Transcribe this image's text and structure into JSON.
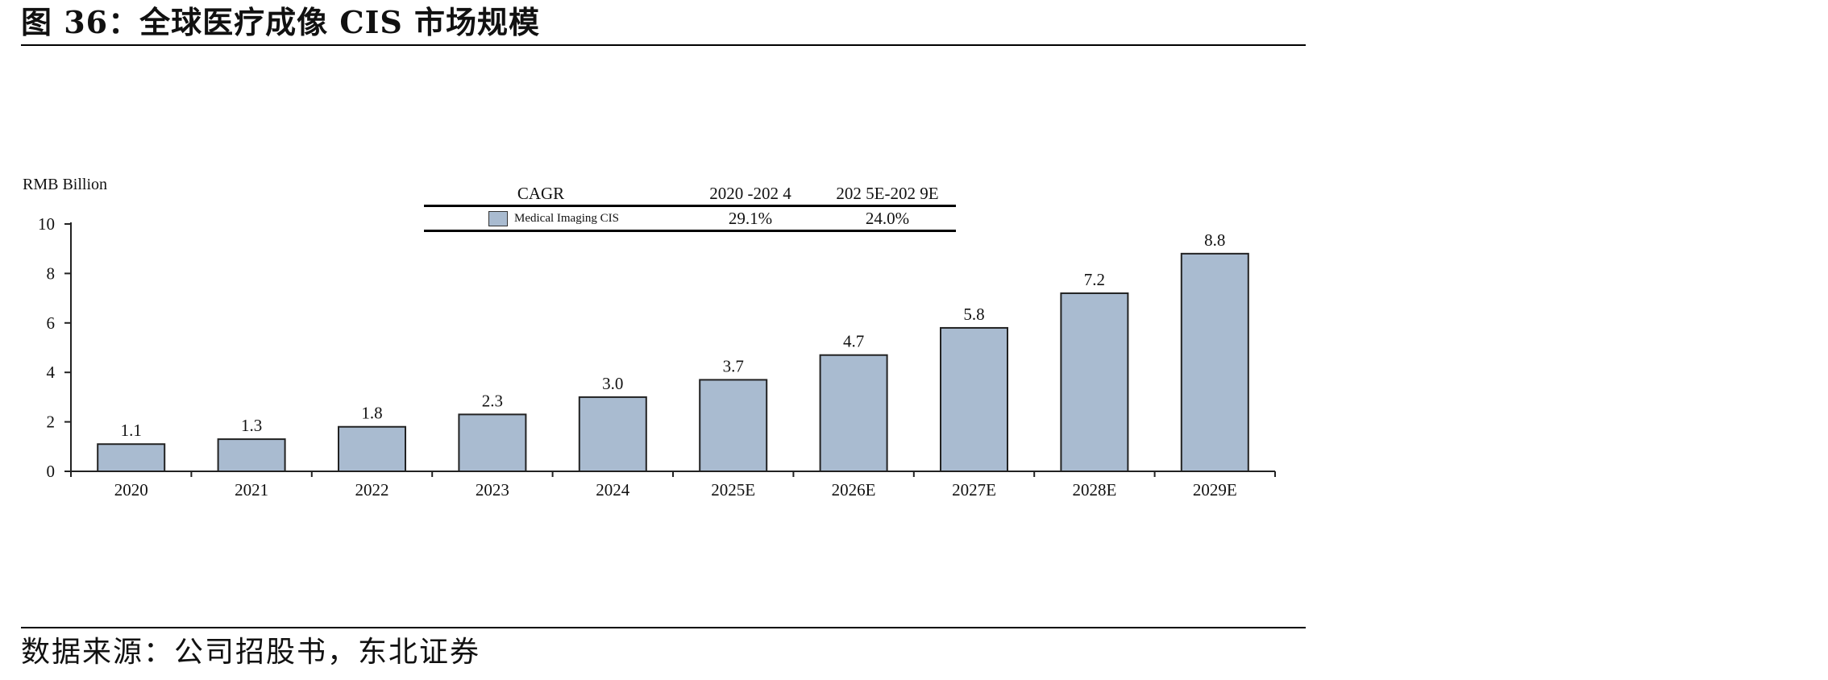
{
  "figure_title": "图 36：全球医疗成像 CIS 市场规模",
  "source_note": "数据来源：公司招股书，东北证券",
  "chart_data": {
    "type": "bar",
    "title": "",
    "xlabel": "",
    "ylabel": "RMB Billion",
    "ylim": [
      0,
      10
    ],
    "yticks": [
      0,
      2,
      4,
      6,
      8,
      10
    ],
    "grid": false,
    "categories": [
      "2020",
      "2021",
      "2022",
      "2023",
      "2024",
      "2025E",
      "2026E",
      "2027E",
      "2028E",
      "2029E"
    ],
    "series": [
      {
        "name": "Medical Imaging CIS",
        "values": [
          1.1,
          1.3,
          1.8,
          2.3,
          3.0,
          3.7,
          4.7,
          5.8,
          7.2,
          8.8
        ]
      }
    ],
    "data_labels": [
      "1.1",
      "1.3",
      "1.8",
      "2.3",
      "3.0",
      "3.7",
      "4.7",
      "5.8",
      "7.2",
      "8.8"
    ],
    "bar_color": "#a9bbd0",
    "bar_edge_color": "#222222",
    "cagr_table": {
      "header": "CAGR",
      "periods": [
        "2020 -202 4",
        "202 5E-202 9E"
      ],
      "rows": [
        {
          "series": "Medical Imaging CIS",
          "values": [
            "29.1%",
            "24.0%"
          ]
        }
      ]
    }
  }
}
